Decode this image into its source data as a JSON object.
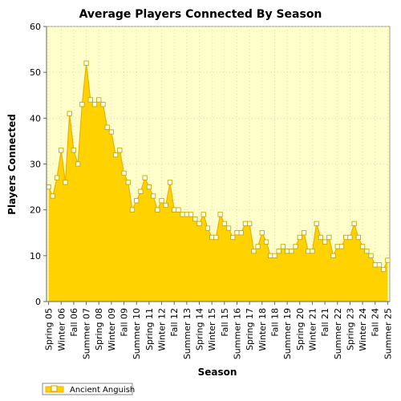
{
  "chart_data": {
    "type": "area",
    "title": "Average Players Connected By Season",
    "xlabel": "Season",
    "ylabel": "Players Connected",
    "ylim": [
      0,
      60
    ],
    "yticks": [
      0,
      10,
      20,
      30,
      40,
      50,
      60
    ],
    "grid": true,
    "legend_position": "bottom-left",
    "x_tick_labels": [
      "Spring 05",
      "Winter 06",
      "Fall 06",
      "Summer 07",
      "Spring 08",
      "Winter 09",
      "Fall 09",
      "Summer 10",
      "Spring 11",
      "Winter 12",
      "Fall 12",
      "Summer 13",
      "Spring 14",
      "Winter 15",
      "Fall 15",
      "Summer 16",
      "Spring 17",
      "Winter 18",
      "Fall 18",
      "Summer 19",
      "Spring 20",
      "Winter 21",
      "Fall 21",
      "Summer 22",
      "Spring 23",
      "Winter 24",
      "Fall 24",
      "Summer 25"
    ],
    "series": [
      {
        "name": "Ancient Anguish",
        "color": "#ffd200",
        "values": [
          25,
          23,
          27,
          33,
          26,
          41,
          33,
          30,
          43,
          52,
          44,
          43,
          44,
          43,
          38,
          37,
          32,
          33,
          28,
          26,
          20,
          22,
          24,
          27,
          25,
          23,
          20,
          22,
          21,
          26,
          20,
          20,
          19,
          19,
          19,
          18,
          17,
          19,
          16,
          14,
          14,
          19,
          17,
          16,
          14,
          15,
          15,
          17,
          17,
          11,
          12,
          15,
          13,
          10,
          10,
          11,
          12,
          11,
          11,
          12,
          14,
          15,
          11,
          11,
          17,
          14,
          13,
          14,
          10,
          12,
          12,
          14,
          14,
          17,
          14,
          12,
          11,
          10,
          8,
          8,
          7,
          9
        ]
      }
    ]
  }
}
